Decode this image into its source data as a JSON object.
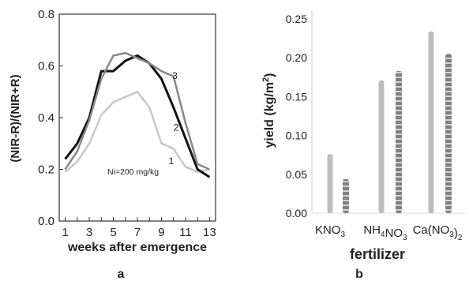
{
  "chart_data": [
    {
      "type": "line",
      "panel_label": "a",
      "xlabel": "weeks after emergence",
      "ylabel": "(NIR-R)/(NIR+R)",
      "annotation": "Ni=200 mg/kg",
      "xlim": [
        0.5,
        13.5
      ],
      "ylim": [
        0.0,
        0.8
      ],
      "x_ticks": [
        "1",
        "3",
        "5",
        "7",
        "9",
        "11",
        "13"
      ],
      "y_ticks": [
        "0.0",
        "0.2",
        "0.4",
        "0.6",
        "0.8"
      ],
      "x": [
        1,
        2,
        3,
        4,
        5,
        6,
        7,
        8,
        9,
        10,
        11,
        12,
        13
      ],
      "series": [
        {
          "name": "1",
          "color": "#c8c8c8",
          "values": [
            0.19,
            0.23,
            0.3,
            0.41,
            0.46,
            0.48,
            0.5,
            0.44,
            0.3,
            0.28,
            0.21,
            0.19,
            0.2
          ]
        },
        {
          "name": "2",
          "color": "#111111",
          "values": [
            0.24,
            0.3,
            0.4,
            0.58,
            0.58,
            0.62,
            0.64,
            0.61,
            0.55,
            0.44,
            0.32,
            0.2,
            0.17
          ]
        },
        {
          "name": "3",
          "color": "#888888",
          "values": [
            0.2,
            0.27,
            0.39,
            0.55,
            0.64,
            0.65,
            0.63,
            0.61,
            0.58,
            0.56,
            0.38,
            0.22,
            0.2
          ]
        }
      ]
    },
    {
      "type": "bar",
      "panel_label": "b",
      "xlabel": "fertilizer",
      "ylabel": "yield (kg/m²)",
      "ylim": [
        0.0,
        0.25
      ],
      "y_ticks": [
        "0.00",
        "0.05",
        "0.10",
        "0.15",
        "0.20",
        "0.25"
      ],
      "categories": [
        "KNO3",
        "NH4NO3",
        "Ca(NO3)2"
      ],
      "series": [
        {
          "color": "#bdbdbd",
          "values": [
            0.076,
            0.171,
            0.234
          ]
        },
        {
          "color": "#808080",
          "values": [
            0.044,
            0.183,
            0.205
          ]
        }
      ]
    }
  ]
}
